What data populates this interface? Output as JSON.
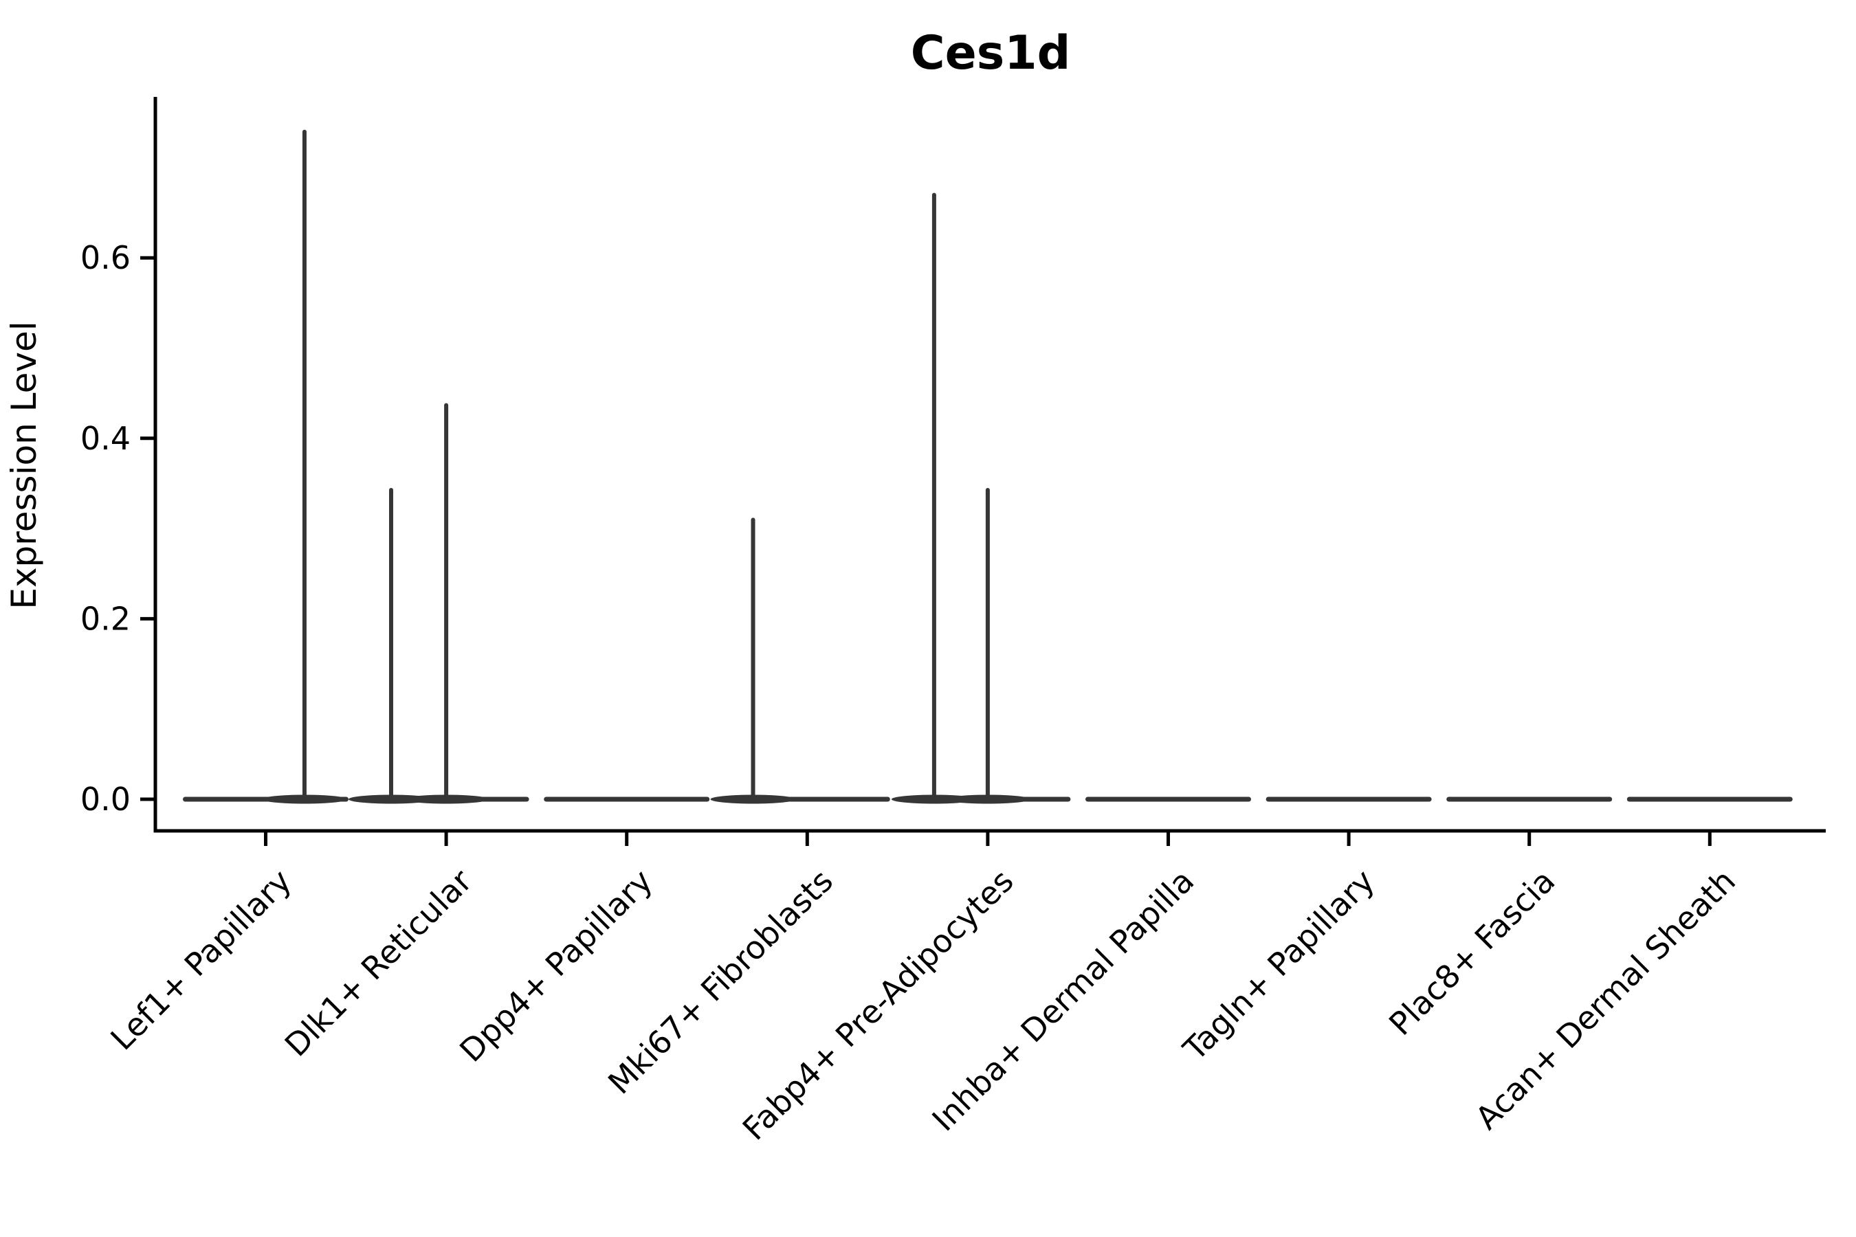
{
  "style": {
    "background_color": "#ffffff",
    "violin_color": "#363636",
    "axis_color": "#000000",
    "text_color": "#000000"
  },
  "chart_data": {
    "type": "violin",
    "title": "Ces1d",
    "xlabel": "",
    "ylabel": "Expression Level",
    "ylim": [
      -0.04,
      0.78
    ],
    "yticks": [
      0.0,
      0.2,
      0.4,
      0.6
    ],
    "grid": false,
    "legend": false,
    "categories": [
      "Lef1+ Papillary",
      "Dlk1+ Reticular",
      "Dpp4+ Papillary",
      "Mki67+ Fibroblasts",
      "Fabp4+ Pre-Adipocytes",
      "Inhba+ Dermal Papilla",
      "Tagln+ Papillary",
      "Plac8+ Fascia",
      "Acan+ Dermal Sheath"
    ],
    "series": [
      {
        "name": "Lef1+ Papillary",
        "baseline_value": 0.0,
        "spikes": [
          {
            "value": 0.742,
            "x_offset_frac": 0.215
          }
        ]
      },
      {
        "name": "Dlk1+ Reticular",
        "baseline_value": 0.0,
        "spikes": [
          {
            "value": 0.345,
            "x_offset_frac": -0.305
          },
          {
            "value": 0.439,
            "x_offset_frac": 0.0
          }
        ]
      },
      {
        "name": "Dpp4+ Papillary",
        "baseline_value": 0.0,
        "spikes": []
      },
      {
        "name": "Mki67+ Fibroblasts",
        "baseline_value": 0.0,
        "spikes": [
          {
            "value": 0.312,
            "x_offset_frac": -0.3
          }
        ]
      },
      {
        "name": "Fabp4+ Pre-Adipocytes",
        "baseline_value": 0.0,
        "spikes": [
          {
            "value": 0.672,
            "x_offset_frac": -0.297
          },
          {
            "value": 0.345,
            "x_offset_frac": 0.0
          }
        ]
      },
      {
        "name": "Inhba+ Dermal Papilla",
        "baseline_value": 0.0,
        "spikes": []
      },
      {
        "name": "Tagln+ Papillary",
        "baseline_value": 0.0,
        "spikes": []
      },
      {
        "name": "Plac8+ Fascia",
        "baseline_value": 0.0,
        "spikes": []
      },
      {
        "name": "Acan+ Dermal Sheath",
        "baseline_value": 0.0,
        "spikes": []
      }
    ]
  }
}
